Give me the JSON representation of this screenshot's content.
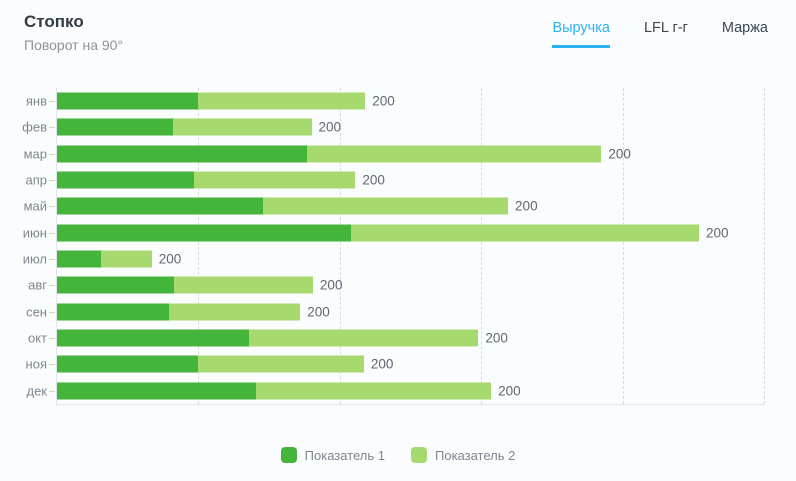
{
  "header": {
    "title": "Стопко",
    "subtitle": "Поворот на 90°",
    "tabs": [
      {
        "label": "Выручка",
        "active": true
      },
      {
        "label": "LFL г-г",
        "active": false
      },
      {
        "label": "Маржа",
        "active": false
      }
    ]
  },
  "colors": {
    "series1": "#44b53a",
    "series2": "#a7da6e",
    "tab_active": "#2eb1f1",
    "grid": "#d7dade",
    "axis": "#e2e5e9"
  },
  "chart_data": {
    "type": "bar",
    "orientation": "horizontal",
    "stacked": true,
    "title": "Стопко",
    "subtitle": "Поворот на 90°",
    "categories": [
      "янв",
      "фев",
      "мар",
      "апр",
      "май",
      "июн",
      "июл",
      "авг",
      "сен",
      "окт",
      "ноя",
      "дек"
    ],
    "series": [
      {
        "name": "Показатель 1",
        "color": "#44b53a",
        "values": [
          100,
          82,
          177,
          97,
          146,
          208,
          31,
          83,
          79,
          136,
          100,
          141
        ]
      },
      {
        "name": "Показатель 2",
        "color": "#a7da6e",
        "values": [
          118,
          98,
          208,
          114,
          173,
          246,
          36,
          98,
          93,
          162,
          117,
          166
        ]
      }
    ],
    "bar_labels": [
      "200",
      "200",
      "200",
      "200",
      "200",
      "200",
      "200",
      "200",
      "200",
      "200",
      "200",
      "200"
    ],
    "xlim": [
      0,
      500
    ],
    "gridlines": [
      100,
      200,
      300,
      400,
      500
    ],
    "grid_style": "dashed-vertical",
    "legend_position": "bottom-center",
    "xlabel": "",
    "ylabel": ""
  },
  "legend": {
    "items": [
      {
        "label": "Показатель 1",
        "color": "#44b53a"
      },
      {
        "label": "Показатель 2",
        "color": "#a7da6e"
      }
    ]
  }
}
